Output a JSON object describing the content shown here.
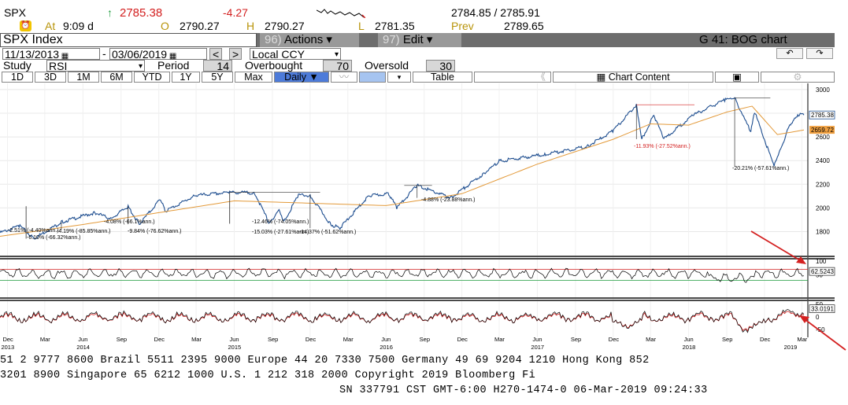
{
  "quote": {
    "ticker": "SPX",
    "arrow": "↑",
    "last": "2785.38",
    "change": "-4.27",
    "at_label": "At",
    "time": "9:09 d",
    "open_label": "O",
    "open": "2790.27",
    "high_label": "H",
    "high": "2790.27",
    "low_label": "L",
    "low": "2781.35",
    "bid_ask": "2784.85 / 2785.91",
    "prev_label": "Prev",
    "prev": "2789.65"
  },
  "titlebar": {
    "security": "SPX Index",
    "actions_num": "96)",
    "actions_label": "Actions ▾",
    "edit_num": "97)",
    "edit_label": "Edit ▾",
    "chart_name": "G 41: BOG chart"
  },
  "range": {
    "start": "11/13/2013",
    "sep": "-",
    "end": "03/06/2019",
    "prev_arrow": "<",
    "next_arrow": ">",
    "currency": "Local CCY"
  },
  "study": {
    "study_label": "Study",
    "study_value": "RSI",
    "period_label": "Period",
    "period_value": "14",
    "overbought_label": "Overbought",
    "overbought_value": "70",
    "oversold_label": "Oversold",
    "oversold_value": "30"
  },
  "toolbar": {
    "periods": [
      "1D",
      "3D",
      "1M",
      "6M",
      "YTD",
      "1Y",
      "5Y",
      "Max"
    ],
    "frequency": "Daily ▼",
    "table_label": "Table",
    "chart_content_label": "Chart Content",
    "double_left": "《"
  },
  "chart_data": [
    {
      "type": "line",
      "name": "price",
      "series": [
        {
          "name": "SPX",
          "color": "#1d4d8f",
          "x": [
            "2013-11-13",
            "2013-12-31",
            "2014-02-03",
            "2014-04-10",
            "2014-06-30",
            "2014-08-07",
            "2014-09-18",
            "2014-10-15",
            "2014-12-05",
            "2014-12-16",
            "2015-02-27",
            "2015-05-21",
            "2015-07-20",
            "2015-08-25",
            "2015-09-17",
            "2015-09-29",
            "2015-11-03",
            "2015-12-01",
            "2016-01-20",
            "2016-02-11",
            "2016-04-20",
            "2016-06-08",
            "2016-06-27",
            "2016-08-15",
            "2016-11-04",
            "2017-01-26",
            "2017-03-01",
            "2017-06-19",
            "2017-09-29",
            "2017-11-30",
            "2018-01-26",
            "2018-02-08",
            "2018-03-09",
            "2018-04-02",
            "2018-06-13",
            "2018-08-29",
            "2018-09-20",
            "2018-10-29",
            "2018-11-07",
            "2018-12-24",
            "2019-01-31",
            "2019-02-25",
            "2019-03-06"
          ],
          "y": [
            1790,
            1848,
            1741,
            1880,
            1960,
            1909,
            2011,
            1862,
            2075,
            1972,
            2104,
            2131,
            2128,
            1867,
            1990,
            1884,
            2109,
            2103,
            1859,
            1829,
            2102,
            2119,
            2000,
            2190,
            2085,
            2297,
            2395,
            2453,
            2519,
            2647,
            2872,
            2581,
            2786,
            2581,
            2786,
            2914,
            2930,
            2641,
            2813,
            2351,
            2704,
            2796,
            2785
          ]
        },
        {
          "name": "MA",
          "color": "#e39a3a",
          "x": [
            "2013-11-13",
            "2014-06-01",
            "2014-12-01",
            "2015-06-01",
            "2015-12-01",
            "2016-06-01",
            "2016-12-01",
            "2017-06-01",
            "2017-12-01",
            "2018-03-01",
            "2018-06-01",
            "2018-09-01",
            "2018-11-01",
            "2019-01-01",
            "2019-03-06"
          ],
          "y": [
            1760,
            1860,
            1960,
            2060,
            2040,
            2020,
            2120,
            2370,
            2580,
            2710,
            2700,
            2810,
            2860,
            2620,
            2659
          ]
        }
      ],
      "ylim": [
        1700,
        3000
      ],
      "ytick_labels": [
        "3000",
        "2800",
        "2600",
        "2400",
        "2200",
        "2000",
        "1800"
      ],
      "last_price_label": "2785.38",
      "ma_label": "2659.72",
      "annotations": [
        "-2.51% (-4.40%ann.)",
        "-6.10% (-66.32%ann.)",
        "-4.19% (-85.85%ann.)",
        "-4.08% (-66.1%ann.)",
        "-9.84% (-76.62%ann.)",
        "-12.46% (-74.05%ann.)",
        "-15.03% (-27.61%ann.)",
        "-14.37% (-51.62%ann.)",
        "-4.88% (-23.88%ann.)",
        "-11.93% (-27.52%ann.)",
        "-20.21% (-57.61%ann.)"
      ]
    },
    {
      "type": "line",
      "name": "rsi",
      "series": [
        {
          "name": "RSI",
          "color": "#000000",
          "last": 62.52
        }
      ],
      "ylim": [
        0,
        100
      ],
      "ytick_labels": [
        "100",
        "50"
      ],
      "overbought": 70,
      "oversold": 30,
      "last_label": "62.5243"
    },
    {
      "type": "line",
      "name": "oscillator",
      "series": [
        {
          "name": "osc",
          "color": "#000000",
          "last": 33.02
        },
        {
          "name": "signal",
          "color": "#d21e1e"
        }
      ],
      "ylim": [
        -75,
        60
      ],
      "ytick_labels": [
        "50",
        "0",
        "-50"
      ],
      "last_label": "33.0191"
    }
  ],
  "x_axis": {
    "month_labels": [
      "Dec",
      "Mar",
      "Jun",
      "Sep",
      "Dec",
      "Mar",
      "Jun",
      "Sep",
      "Dec",
      "Mar",
      "Jun",
      "Sep",
      "Dec",
      "Mar",
      "Jun",
      "Sep",
      "Dec",
      "Mar",
      "Jun",
      "Sep",
      "Dec",
      "Mar",
      "Jun",
      "Sep",
      "Dec",
      "Mar"
    ],
    "year_labels": [
      "2013",
      "2014",
      "2015",
      "2016",
      "2017",
      "2018",
      "2019"
    ]
  },
  "ticker_lines": [
    "51 2 9777 8600 Brazil 5511 2395 9000 Europe 44 20 7330 7500 Germany 49 69 9204 1210 Hong Kong 852",
    "3201 8900         Singapore 65 6212 1000       U.S. 1 212 318 2000          Copyright 2019 Bloomberg Fi",
    "SN 337791 CST  GMT-6:00 H270-1474-0 06-Mar-2019 09:24:33"
  ],
  "colors": {
    "price": "#1d4d8f",
    "ma": "#e39a3a",
    "annotation_red": "#d32020",
    "arrow": "#d42020",
    "bar": "#6d6d6d"
  }
}
